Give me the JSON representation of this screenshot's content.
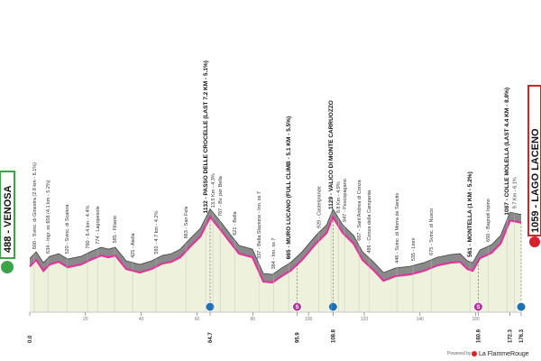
{
  "chart_data": {
    "type": "area",
    "start": "488 - VENOSA",
    "finish": "1059 - LAGO LACENO",
    "x": [
      0,
      2.3,
      4.9,
      7.1,
      10.4,
      13.6,
      18.4,
      21.7,
      25.6,
      28.2,
      30.7,
      34.6,
      39.5,
      43.7,
      47.6,
      50.8,
      54.0,
      57.9,
      61.2,
      64.7,
      68.6,
      71.8,
      75.1,
      79.9,
      83.8,
      87.1,
      90.3,
      93.5,
      97.7,
      102.6,
      106.5,
      108.8,
      112.3,
      116.2,
      119.4,
      123.6,
      126.9,
      131.1,
      136.6,
      141.4,
      146.3,
      151.1,
      154.4,
      157.0,
      158.9,
      161.5,
      165.7,
      168.9,
      172.3,
      176.3
    ],
    "values": [
      488,
      574,
      433,
      515,
      550,
      480,
      515,
      574,
      632,
      609,
      632,
      457,
      410,
      457,
      527,
      550,
      609,
      761,
      878,
      1132,
      960,
      808,
      656,
      609,
      293,
      281,
      363,
      433,
      574,
      785,
      925,
      1129,
      925,
      785,
      574,
      433,
      304,
      363,
      387,
      433,
      504,
      539,
      550,
      457,
      433,
      597,
      667,
      785,
      1087,
      1059
    ],
    "color": "#e0359a",
    "xlim": [
      0,
      176.3
    ],
    "ylim": [
      0,
      1400
    ],
    "xticks": [
      {
        "value": 0,
        "label": "0.0"
      },
      20,
      40,
      60,
      {
        "value": 64.7,
        "label": "64.7"
      },
      80,
      {
        "value": 95.9,
        "label": "95.9"
      },
      100,
      {
        "value": 108.8,
        "label": "108.8"
      },
      120,
      140,
      160,
      {
        "value": 160.9,
        "label": "160.9"
      },
      {
        "value": 172.3,
        "label": "172.3"
      },
      {
        "value": 176.3,
        "label": "176.3"
      }
    ],
    "kom_km": [
      64.7,
      108.8,
      176.3
    ],
    "sprint_km": [
      95.9,
      160.9
    ],
    "sprint_label": "S",
    "annotations": [
      {
        "x": 1.6,
        "text": "600 - Svinc. di Ginestra (2.8 km - 6.1%)"
      },
      {
        "x": 6.5,
        "text": "634 - Ingr. ss 658 (4.1 km - 5.2%)"
      },
      {
        "x": 13.3,
        "text": "520 - Svinc. di Scalera"
      },
      {
        "x": 20.7,
        "text": "760 - 6.4 km - 4.4%"
      },
      {
        "x": 24.3,
        "text": "774 - Lagopesole"
      },
      {
        "x": 30.4,
        "text": "585 - Filiano"
      },
      {
        "x": 36.9,
        "text": "425 - Atella"
      },
      {
        "x": 45.3,
        "text": "592 - 4.7 km - 4.2%"
      },
      {
        "x": 56.0,
        "text": "863 - San Fele"
      },
      {
        "x": 63.1,
        "text": "1132 - PASSO DELLE CROCELLE (LAST 7.2 KM - 5.1%)"
      },
      {
        "x": 65.7,
        "text": "13.5 Km - 4.3%"
      },
      {
        "x": 68.3,
        "text": "787 - Bv. per Bella"
      },
      {
        "x": 73.5,
        "text": "621 - Bella"
      },
      {
        "x": 82.2,
        "text": "337 - Bella Stazione - Inn. ss 7"
      },
      {
        "x": 87.4,
        "text": "384 - Inn. ss 7"
      },
      {
        "x": 92.9,
        "text": "665 - MURO LUCANO (FULL CLIMB - 5.1 KM - 5.5%)"
      },
      {
        "x": 103.6,
        "text": "929 - Castelgrande"
      },
      {
        "x": 108.1,
        "text": "1129 - VALICO DI MONTE CARRUOZZO"
      },
      {
        "x": 110.7,
        "text": "8.8 Km - 4.9%"
      },
      {
        "x": 112.9,
        "text": "947 - Pescopagano"
      },
      {
        "x": 118.1,
        "text": "667 - Sant'Andrea di Conza"
      },
      {
        "x": 121.7,
        "text": "486 - Conza della Campania"
      },
      {
        "x": 131.7,
        "text": "446 - Svinc. di Morra de Sanctis"
      },
      {
        "x": 137.5,
        "text": "535 - Lioni"
      },
      {
        "x": 144.0,
        "text": "675 - Svinc. di Nusco"
      },
      {
        "x": 157.9,
        "text": "561 - MONTELLA (1 KM - 5.2%)"
      },
      {
        "x": 164.4,
        "text": "650 - Bagnoli Irpino"
      },
      {
        "x": 171.2,
        "text": "1087 - COLLE MOLELLA (LAST 4.4 KM - 8.8%)"
      },
      {
        "x": 173.8,
        "text": "9.7 Km - 6.1%"
      }
    ],
    "footer": "Powered by",
    "brand": "La FlammeRouge"
  }
}
